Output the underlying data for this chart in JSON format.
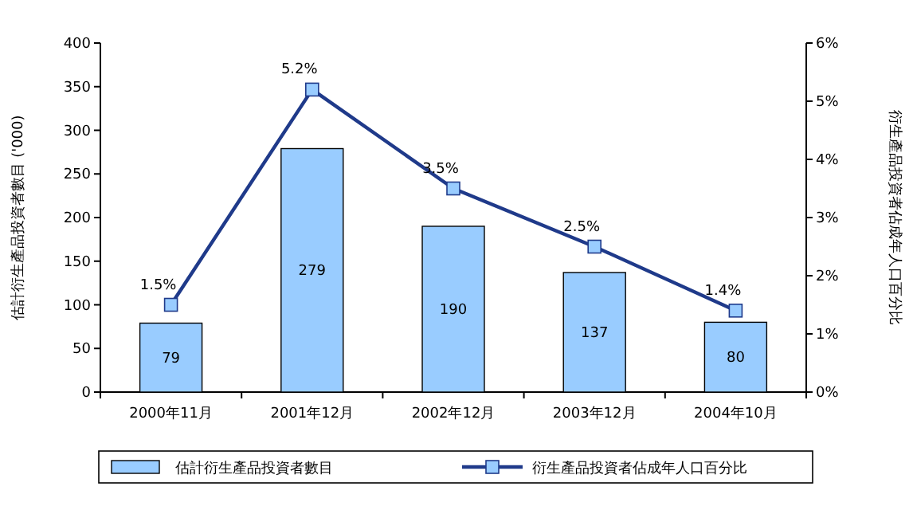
{
  "chart_data": {
    "type": "bar",
    "categories": [
      "2000年11月",
      "2001年12月",
      "2002年12月",
      "2003年12月",
      "2004年10月"
    ],
    "ylabel": "估計衍生產品投資者數目 ('000)",
    "y2label": "衍生產品投資者佔成年人口百分比",
    "ylim": [
      0,
      400
    ],
    "yticks": [
      0,
      50,
      100,
      150,
      200,
      250,
      300,
      350,
      400
    ],
    "y2lim": [
      0,
      6
    ],
    "y2ticks": [
      {
        "value": 0,
        "label": "0%"
      },
      {
        "value": 1,
        "label": "1%"
      },
      {
        "value": 2,
        "label": "2%"
      },
      {
        "value": 3,
        "label": "3%"
      },
      {
        "value": 4,
        "label": "4%"
      },
      {
        "value": 5,
        "label": "5%"
      },
      {
        "value": 6,
        "label": "6%"
      }
    ],
    "legend": "bottom",
    "grid": false,
    "series": [
      {
        "name": "估計衍生產品投資者數目",
        "color": "#99ccff",
        "values": [
          79,
          279,
          190,
          137,
          80
        ],
        "value_labels": [
          "79",
          "279",
          "190",
          "137",
          "80"
        ]
      },
      {
        "name": "衍生產品投資者佔成年人口百分比",
        "type": "line",
        "axis": "y2",
        "color": "#1f3a8a",
        "marker": "square",
        "line_style": "solid",
        "values": [
          1.5,
          5.2,
          3.5,
          2.5,
          1.4
        ],
        "value_labels": [
          "1.5%",
          "5.2%",
          "3.5%",
          "2.5%",
          "1.4%"
        ]
      }
    ]
  }
}
